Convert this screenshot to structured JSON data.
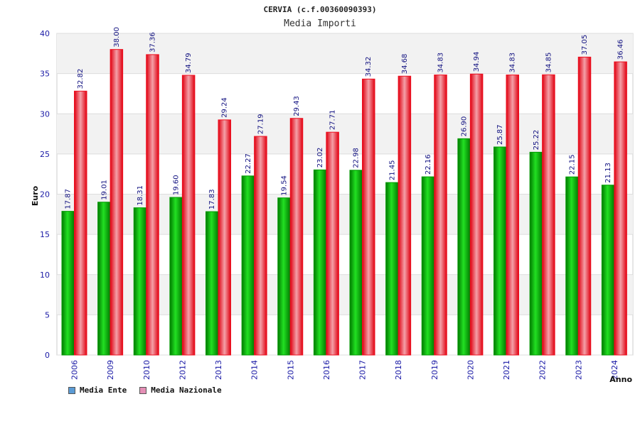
{
  "chart_data": {
    "type": "bar",
    "title": "CERVIA (c.f.00360090393)",
    "subtitle": "Media Importi",
    "xlabel": "Anno",
    "ylabel": "Euro",
    "ylim": [
      0,
      40
    ],
    "yticks": [
      0,
      5,
      10,
      15,
      20,
      25,
      30,
      35,
      40
    ],
    "categories": [
      "2006",
      "2009",
      "2010",
      "2012",
      "2013",
      "2014",
      "2015",
      "2016",
      "2017",
      "2018",
      "2019",
      "2020",
      "2021",
      "2022",
      "2023",
      "2024"
    ],
    "series": [
      {
        "name": "Media Ente",
        "color": "#00cc00",
        "values": [
          17.87,
          19.01,
          18.31,
          19.6,
          17.83,
          22.27,
          19.54,
          23.02,
          22.98,
          21.45,
          22.16,
          26.9,
          25.87,
          25.22,
          22.15,
          21.13
        ],
        "labels": [
          "17.87",
          "19.01",
          "18.31",
          "19.60",
          "17.83",
          "22.27",
          "19.54",
          "23.02",
          "22.98",
          "21.45",
          "22.16",
          "26.90",
          "25.87",
          "25.22",
          "22.15",
          "21.13"
        ]
      },
      {
        "name": "Media Nazionale",
        "color": "#ff2020",
        "values": [
          32.82,
          38.0,
          37.36,
          34.79,
          29.24,
          27.19,
          29.43,
          27.71,
          34.32,
          34.68,
          34.83,
          34.94,
          34.83,
          34.85,
          37.05,
          36.46
        ],
        "labels": [
          "32.82",
          "38.00",
          "37.36",
          "34.79",
          "29.24",
          "27.19",
          "29.43",
          "27.71",
          "34.32",
          "34.68",
          "34.83",
          "34.94",
          "34.83",
          "34.85",
          "37.05",
          "36.46"
        ]
      }
    ],
    "grid": true,
    "legend_position": "bottom-left",
    "legend": [
      {
        "label": "Media Ente",
        "color": "#5b9bd5"
      },
      {
        "label": "Media Nazionale",
        "color": "#e58fb6"
      }
    ]
  }
}
